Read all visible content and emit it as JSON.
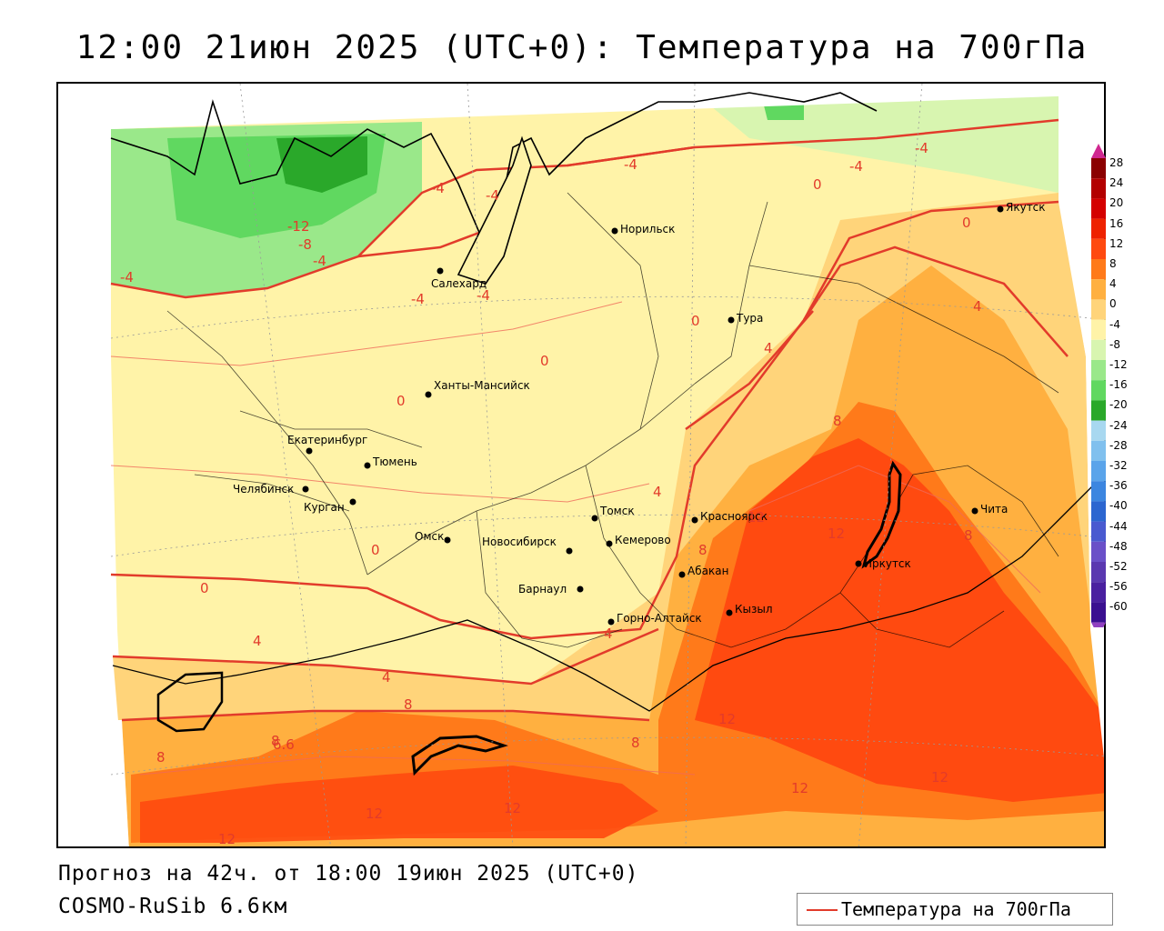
{
  "title": "12:00 21июн 2025 (UTC+0): Температура на 700гПа",
  "forecast_line": "Прогноз на 42ч. от 18:00 19июн 2025 (UTC+0)",
  "model_line": "COSMO-RuSib 6.6км",
  "legend": {
    "label": "Температура на 700гПа",
    "line_color": "#e23b2b"
  },
  "colorbar": {
    "ticks": [
      "28",
      "24",
      "20",
      "16",
      "12",
      "8",
      "4",
      "0",
      "-4",
      "-8",
      "-12",
      "-16",
      "-20",
      "-24",
      "-28",
      "-32",
      "-36",
      "-40",
      "-44",
      "-48",
      "-52",
      "-56",
      "-60"
    ],
    "colors": [
      "#8b0000",
      "#b30000",
      "#d40000",
      "#ee2200",
      "#ff4a10",
      "#ff7a1a",
      "#ffb040",
      "#ffd47a",
      "#fff3a8",
      "#d8f5b0",
      "#9ae88a",
      "#60d860",
      "#2aa82a",
      "#a8d8f0",
      "#80c0ee",
      "#5aa4ea",
      "#3c86e0",
      "#2c66d0",
      "#4a5ad0",
      "#6a50c8",
      "#5a38b0",
      "#4a20a0",
      "#3a1090"
    ],
    "top_arrow_color": "#d02890",
    "bottom_arrow_color": "#9040c0"
  },
  "cities": [
    {
      "name": "Норильск"
    },
    {
      "name": "Якутск"
    },
    {
      "name": "Салехард"
    },
    {
      "name": "Тура"
    },
    {
      "name": "Ханты-Мансийск"
    },
    {
      "name": "Екатеринбург"
    },
    {
      "name": "Тюмень"
    },
    {
      "name": "Челябинск"
    },
    {
      "name": "Курган"
    },
    {
      "name": "Омск"
    },
    {
      "name": "Новосибирск"
    },
    {
      "name": "Томск"
    },
    {
      "name": "Кемерово"
    },
    {
      "name": "Красноярск"
    },
    {
      "name": "Барнаул"
    },
    {
      "name": "Абакан"
    },
    {
      "name": "Горно-Алтайск"
    },
    {
      "name": "Кызыл"
    },
    {
      "name": "Иркутск"
    },
    {
      "name": "Чита"
    }
  ],
  "isotherm_labels": [
    "-4",
    "-4",
    "-4",
    "-4",
    "-4",
    "-12",
    "-8",
    "-4",
    "-4",
    "-4",
    "-4",
    "0",
    "0",
    "0",
    "0",
    "0",
    "0",
    "0",
    "4",
    "4",
    "4",
    "4",
    "4",
    "4",
    "8",
    "8",
    "8",
    "8",
    "8",
    "8",
    "8",
    "6.6",
    "12",
    "12",
    "12",
    "12",
    "12",
    "12",
    "12",
    "12",
    "12",
    "12"
  ],
  "colors": {
    "accent_line": "#e23b2b"
  }
}
